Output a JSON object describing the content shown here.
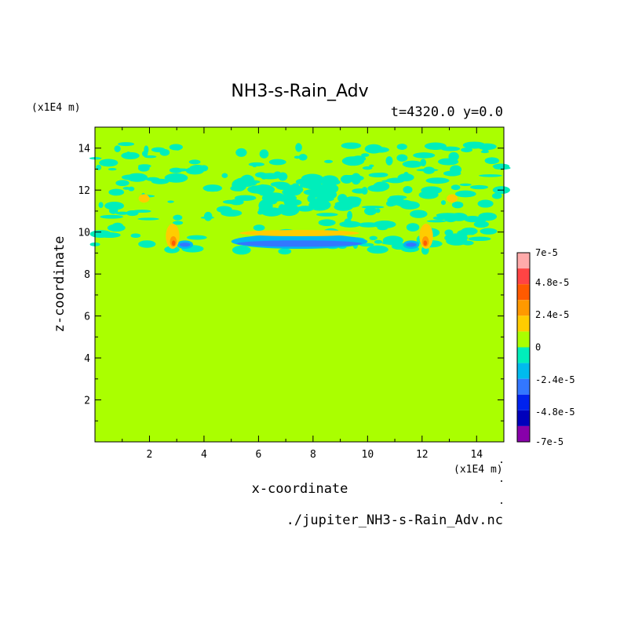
{
  "chart_data": {
    "type": "heatmap",
    "title": "NH3-s-Rain_Adv",
    "subtitle": "t=4320.0 y=0.0",
    "xlabel": "x-coordinate",
    "ylabel": "z-coordinate",
    "x_unit": "(x1E4 m)",
    "y_unit": "(x1E4 m)",
    "xlim": [
      0,
      15
    ],
    "ylim": [
      0,
      15
    ],
    "x_ticks": [
      2,
      4,
      6,
      8,
      10,
      12,
      14
    ],
    "y_ticks": [
      2,
      4,
      6,
      8,
      10,
      12,
      14
    ],
    "x_tick_labels": [
      "2",
      "4",
      "6",
      "8",
      "10",
      "12",
      "14"
    ],
    "y_tick_labels": [
      "2",
      "4",
      "6",
      "8",
      "10",
      "12",
      "14"
    ],
    "source_file": "./jupiter_NH3-s-Rain_Adv.nc",
    "colorbar": {
      "levels": [
        {
          "value": 7e-05,
          "color": "#ffaaaa"
        },
        {
          "value": 6e-05,
          "color": "#ff4444"
        },
        {
          "value": 4.8e-05,
          "color": "#ff5a00"
        },
        {
          "value": 3.6e-05,
          "color": "#ff9900"
        },
        {
          "value": 2.4e-05,
          "color": "#ffcc00"
        },
        {
          "value": 1.2e-05,
          "color": "#aaff00"
        },
        {
          "value": 0,
          "color": "#00eebb"
        },
        {
          "value": -1.2e-05,
          "color": "#00bbee"
        },
        {
          "value": -2.4e-05,
          "color": "#3377ff"
        },
        {
          "value": -3.6e-05,
          "color": "#0022ee"
        },
        {
          "value": -4.8e-05,
          "color": "#0000bb"
        },
        {
          "value": -6e-05,
          "color": "#8800aa"
        }
      ],
      "labels": [
        "7e-5",
        "4.8e-5",
        "2.4e-5",
        "0",
        "-2.4e-5",
        "-4.8e-5",
        "-7e-5"
      ],
      "label_values": [
        7e-05,
        4.8e-05,
        2.4e-05,
        0,
        -2.4e-05,
        -4.8e-05,
        -7e-05
      ],
      "range": [
        -7e-05,
        7e-05
      ]
    },
    "background_color": "#aaff00",
    "features": [
      {
        "name": "cyan",
        "value": -1e-05,
        "color": "#00eebb",
        "regions": [
          {
            "x": [
              0.0,
              15.0
            ],
            "z": [
              9.0,
              14.2
            ],
            "kind": "band"
          },
          {
            "x": [
              5.2,
              9.8
            ],
            "z": [
              11.0,
              12.6
            ],
            "kind": "arch"
          }
        ]
      },
      {
        "name": "light-blue",
        "value": -2e-05,
        "color": "#00bbee",
        "regions": [
          {
            "x": [
              3.0,
              3.6
            ],
            "z": [
              9.2,
              9.6
            ]
          },
          {
            "x": [
              5.0,
              10.0
            ],
            "z": [
              9.2,
              9.9
            ]
          },
          {
            "x": [
              11.3,
              11.9
            ],
            "z": [
              9.2,
              9.6
            ]
          }
        ]
      },
      {
        "name": "blue",
        "value": -3e-05,
        "color": "#3377ff",
        "regions": [
          {
            "x": [
              5.2,
              9.8
            ],
            "z": [
              9.3,
              9.6
            ]
          },
          {
            "x": [
              3.1,
              3.5
            ],
            "z": [
              9.3,
              9.5
            ]
          },
          {
            "x": [
              11.4,
              11.8
            ],
            "z": [
              9.3,
              9.5
            ]
          }
        ]
      },
      {
        "name": "yellow",
        "value": 2e-05,
        "color": "#ffcc00",
        "regions": [
          {
            "x": [
              5.3,
              9.7
            ],
            "z": [
              9.8,
              10.1
            ]
          },
          {
            "x": [
              2.6,
              3.1
            ],
            "z": [
              9.2,
              10.4
            ]
          },
          {
            "x": [
              11.9,
              12.4
            ],
            "z": [
              9.2,
              10.4
            ]
          },
          {
            "x": [
              1.6,
              2.0
            ],
            "z": [
              11.4,
              11.8
            ]
          },
          {
            "x": [
              12.9,
              13.3
            ],
            "z": [
              11.4,
              11.8
            ]
          }
        ]
      },
      {
        "name": "orange",
        "value": 3.5e-05,
        "color": "#ff9900",
        "regions": [
          {
            "x": [
              2.75,
              3.0
            ],
            "z": [
              9.3,
              9.8
            ]
          },
          {
            "x": [
              12.0,
              12.25
            ],
            "z": [
              9.3,
              9.8
            ]
          }
        ]
      },
      {
        "name": "red",
        "value": 4.5e-05,
        "color": "#ff5a00",
        "regions": [
          {
            "x": [
              2.82,
              2.95
            ],
            "z": [
              9.35,
              9.6
            ]
          },
          {
            "x": [
              12.05,
              12.18
            ],
            "z": [
              9.35,
              9.6
            ]
          }
        ]
      }
    ],
    "grid": false,
    "legend": "right"
  }
}
